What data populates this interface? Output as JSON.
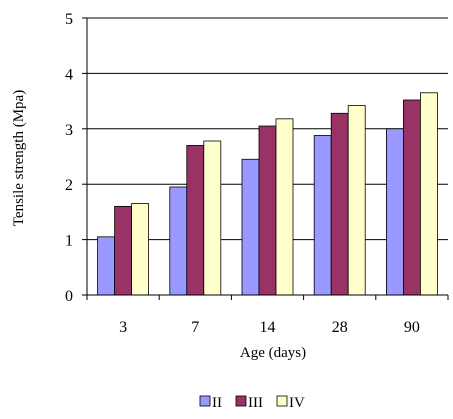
{
  "chart_data": {
    "type": "bar",
    "title": "",
    "xlabel": "Age (days)",
    "ylabel": "Tensile strength (Mpa)",
    "categories": [
      "3",
      "7",
      "14",
      "28",
      "90"
    ],
    "ylim": [
      0,
      5
    ],
    "yticks": [
      "0",
      "1",
      "2",
      "3",
      "4",
      "5"
    ],
    "grid": true,
    "legend_position": "bottom",
    "series": [
      {
        "name": "II",
        "color": "#9999ff",
        "values": [
          1.05,
          1.95,
          2.45,
          2.88,
          3.0
        ]
      },
      {
        "name": "III",
        "color": "#993366",
        "values": [
          1.6,
          2.7,
          3.05,
          3.28,
          3.52
        ]
      },
      {
        "name": "IV",
        "color": "#ffffcc",
        "values": [
          1.65,
          2.78,
          3.18,
          3.42,
          3.65
        ]
      }
    ]
  }
}
